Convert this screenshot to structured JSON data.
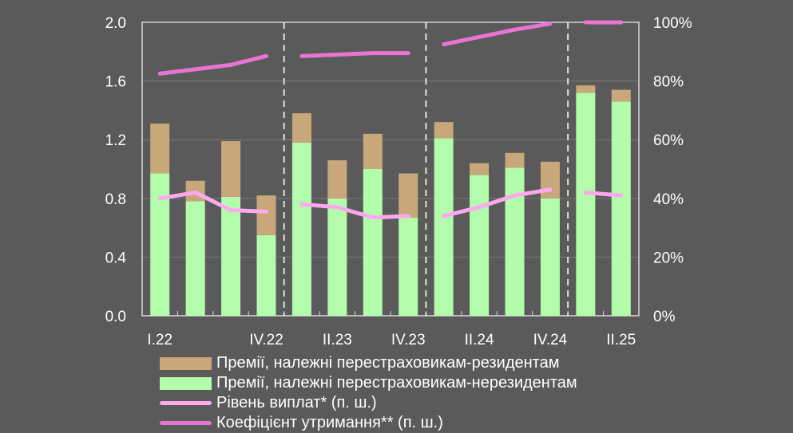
{
  "chart_data": {
    "type": "bar",
    "stacked": true,
    "categories": [
      "I.22",
      "II.22",
      "III.22",
      "IV.22",
      "I.23",
      "II.23",
      "III.23",
      "IV.23",
      "I.24",
      "II.24",
      "III.24",
      "IV.24",
      "I.25",
      "II.25"
    ],
    "x_tick_labels": [
      "I.22",
      "",
      "",
      "IV.22",
      "",
      "II.23",
      "",
      "IV.23",
      "",
      "II.24",
      "",
      "IV.24",
      "",
      "II.25"
    ],
    "year_dividers_after": [
      "IV.22",
      "IV.23",
      "IV.24"
    ],
    "y_left": {
      "range": [
        0,
        2.0
      ],
      "ticks": [
        "0.0",
        "0.4",
        "0.8",
        "1.2",
        "1.6",
        "2.0"
      ]
    },
    "y_right": {
      "range": [
        0,
        100
      ],
      "unit": "%",
      "ticks": [
        "0%",
        "20%",
        "40%",
        "60%",
        "80%",
        "100%"
      ]
    },
    "grid": true,
    "legend_position": "bottom",
    "series": [
      {
        "name": "Премії, належні перестраховикам-нерезидентам",
        "kind": "bar",
        "axis": "left",
        "color": "#b2fcac",
        "values": [
          0.97,
          0.78,
          0.81,
          0.55,
          1.18,
          0.8,
          1.0,
          0.67,
          1.21,
          0.96,
          1.01,
          0.8,
          1.52,
          1.46
        ]
      },
      {
        "name": "Премії, належні перестраховикам-резидентам",
        "kind": "bar",
        "axis": "left",
        "color": "#c8a87a",
        "values": [
          0.34,
          0.14,
          0.38,
          0.27,
          0.2,
          0.26,
          0.24,
          0.3,
          0.11,
          0.08,
          0.1,
          0.25,
          0.05,
          0.08
        ]
      },
      {
        "name": "Рівень виплат* (п. ш.)",
        "kind": "line",
        "axis": "right",
        "color": "#ffa8f0",
        "values": [
          40,
          42,
          36,
          35.5,
          38,
          37,
          33.5,
          34,
          34,
          37,
          41,
          43,
          42,
          41
        ]
      },
      {
        "name": "Коефіцієнт утримання** (п. ш.)",
        "kind": "line",
        "axis": "right",
        "color": "#e874d4",
        "values": [
          82.5,
          84,
          85.5,
          88.5,
          88.5,
          89,
          89.5,
          89.5,
          92.5,
          95,
          97.5,
          99.5,
          100,
          100
        ]
      }
    ]
  },
  "legend": [
    {
      "label": "Премії, належні перестраховикам-резидентам",
      "color": "#c8a87a",
      "type": "box"
    },
    {
      "label": "Премії, належні перестраховикам-нерезидентам",
      "color": "#b2fcac",
      "type": "box"
    },
    {
      "label": "Рівень виплат* (п. ш.)",
      "color": "#ffa8f0",
      "type": "line"
    },
    {
      "label": "Коефіцієнт утримання** (п. ш.)",
      "color": "#e874d4",
      "type": "line"
    }
  ]
}
